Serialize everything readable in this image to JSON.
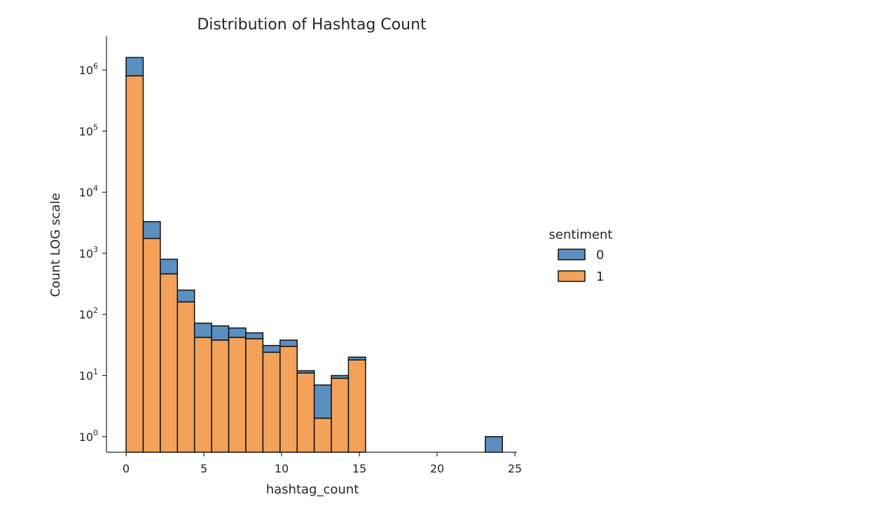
{
  "chart_data": {
    "type": "bar",
    "title": "Distribution of Hashtag Count",
    "xlabel": "hashtag_count",
    "ylabel": "Count LOG scale",
    "yscale": "log",
    "stacked": true,
    "ylim": [
      0.5,
      2500000
    ],
    "xlim": [
      -1,
      25
    ],
    "xticks": [
      0,
      5,
      10,
      15,
      20,
      25
    ],
    "yticks": [
      1,
      10,
      100,
      1000,
      10000,
      100000,
      1000000
    ],
    "ytick_labels": [
      {
        "base": "10",
        "exp": "0"
      },
      {
        "base": "10",
        "exp": "1"
      },
      {
        "base": "10",
        "exp": "2"
      },
      {
        "base": "10",
        "exp": "3"
      },
      {
        "base": "10",
        "exp": "4"
      },
      {
        "base": "10",
        "exp": "5"
      },
      {
        "base": "10",
        "exp": "6"
      }
    ],
    "bin_width": 1.1,
    "bins": [
      {
        "x0": 0.0,
        "total": 1600000,
        "sentiment_1": 800000
      },
      {
        "x0": 1.1,
        "total": 3300,
        "sentiment_1": 1750
      },
      {
        "x0": 2.2,
        "total": 800,
        "sentiment_1": 460
      },
      {
        "x0": 3.3,
        "total": 250,
        "sentiment_1": 160
      },
      {
        "x0": 4.4,
        "total": 72,
        "sentiment_1": 42
      },
      {
        "x0": 5.5,
        "total": 65,
        "sentiment_1": 38
      },
      {
        "x0": 6.6,
        "total": 60,
        "sentiment_1": 42
      },
      {
        "x0": 7.7,
        "total": 50,
        "sentiment_1": 40
      },
      {
        "x0": 8.8,
        "total": 31,
        "sentiment_1": 24
      },
      {
        "x0": 9.9,
        "total": 38,
        "sentiment_1": 30
      },
      {
        "x0": 11.0,
        "total": 12,
        "sentiment_1": 11
      },
      {
        "x0": 12.1,
        "total": 7,
        "sentiment_1": 2
      },
      {
        "x0": 13.2,
        "total": 10,
        "sentiment_1": 9
      },
      {
        "x0": 14.3,
        "total": 20,
        "sentiment_1": 18
      },
      {
        "x0": 23.1,
        "total": 1,
        "sentiment_1": 0
      }
    ],
    "legend": {
      "title": "sentiment",
      "placement": "right",
      "entries": [
        {
          "label": "0",
          "color": "#5b8fbf"
        },
        {
          "label": "1",
          "color": "#f4a259"
        }
      ]
    },
    "colors": {
      "sentiment_0": "#5b8fbf",
      "sentiment_1": "#f4a259",
      "edge": "#111111"
    },
    "grid": false
  }
}
